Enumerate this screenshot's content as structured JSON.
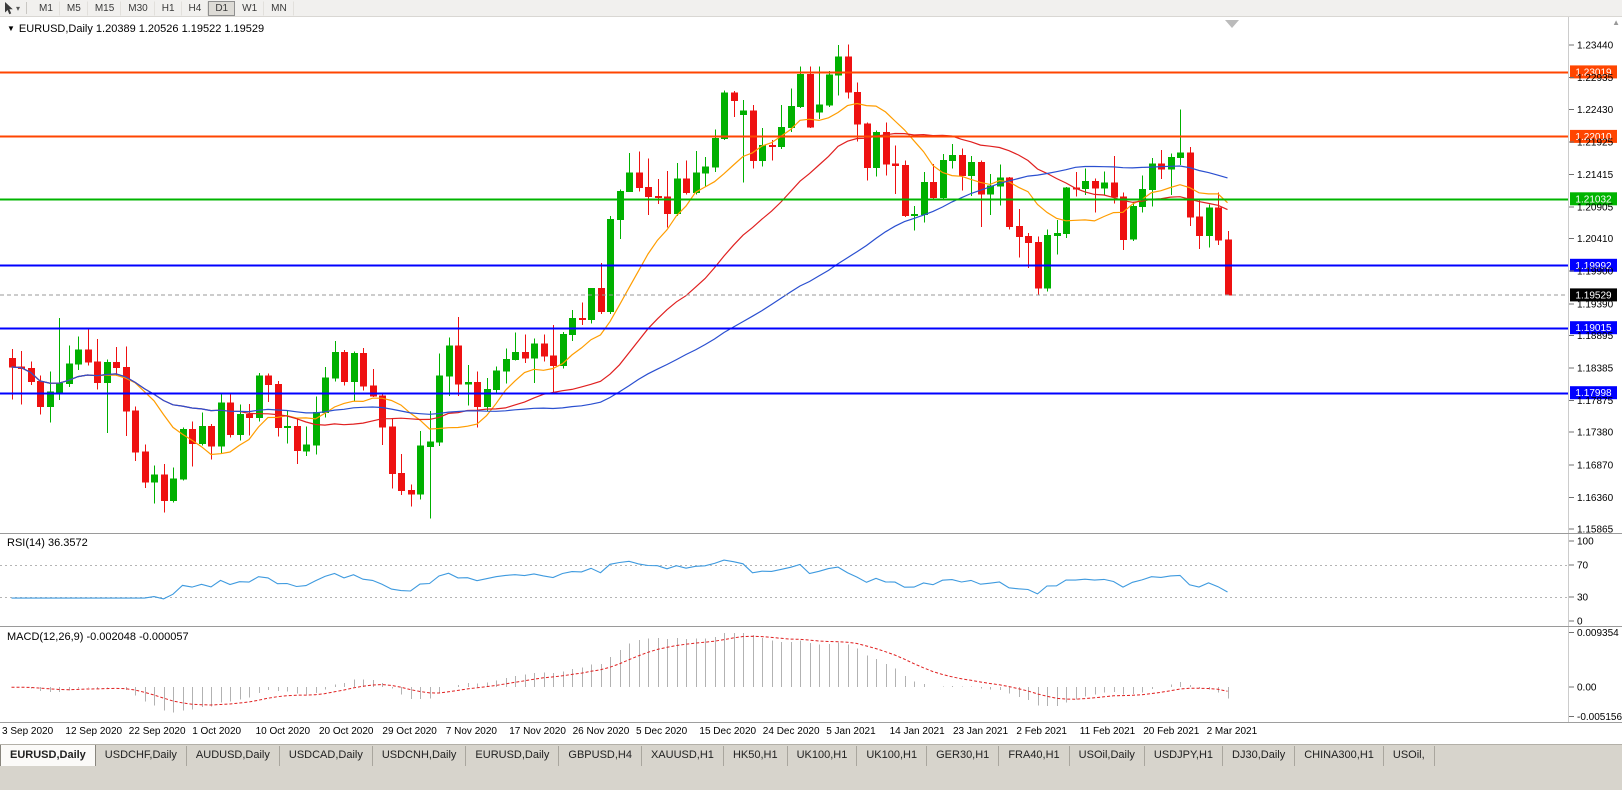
{
  "toolbar": {
    "timeframes": [
      "M1",
      "M5",
      "M15",
      "M30",
      "H1",
      "H4",
      "D1",
      "W1",
      "MN"
    ],
    "active_timeframe": "D1"
  },
  "chart_data": {
    "type": "candlestick",
    "symbol": "EURUSD",
    "period": "Daily",
    "title": "EURUSD,Daily 1.20389 1.20526 1.19522 1.19529",
    "ohlc_current": {
      "open": 1.20389,
      "high": 1.20526,
      "low": 1.19522,
      "close": 1.19529
    },
    "up_color": "#00b000",
    "down_color": "#ee1111",
    "price_axis": {
      "labels": [
        "1.23440",
        "1.22935",
        "1.22430",
        "1.21925",
        "1.21415",
        "1.20905",
        "1.20410",
        "1.19900",
        "1.19390",
        "1.18895",
        "1.18385",
        "1.17875",
        "1.17380",
        "1.16870",
        "1.16360",
        "1.15865"
      ],
      "range_max": 1.23878,
      "range_min": 1.15802
    },
    "x_labels": [
      "3 Sep 2020",
      "12 Sep 2020",
      "22 Sep 2020",
      "1 Oct 2020",
      "10 Oct 2020",
      "20 Oct 2020",
      "29 Oct 2020",
      "7 Nov 2020",
      "17 Nov 2020",
      "26 Nov 2020",
      "5 Dec 2020",
      "15 Dec 2020",
      "24 Dec 2020",
      "5 Jan 2021",
      "14 Jan 2021",
      "23 Jan 2021",
      "2 Feb 2021",
      "11 Feb 2021",
      "20 Feb 2021",
      "2 Mar 2021"
    ],
    "h_lines": [
      {
        "price": 1.23019,
        "label": "1.23019",
        "color": "#ff4500"
      },
      {
        "price": 1.2201,
        "label": "1.22010",
        "color": "#ff4500"
      },
      {
        "price": 1.21032,
        "label": "1.21032",
        "color": "#00b400"
      },
      {
        "price": 1.19992,
        "label": "1.19992",
        "color": "#0000ff"
      },
      {
        "price": 1.19015,
        "label": "1.19015",
        "color": "#0000ff"
      },
      {
        "price": 1.17998,
        "label": "1.17998",
        "color": "#0000ff"
      }
    ],
    "current_price": {
      "value": 1.19529,
      "label": "1.19529",
      "color": "#000000"
    },
    "moving_averages": [
      {
        "period": 10,
        "color": "#ff9d00"
      },
      {
        "period": 25,
        "color": "#e02020"
      },
      {
        "period": 50,
        "color": "#2a4fd0"
      }
    ],
    "rsi": {
      "label": "RSI(14) 36.3572",
      "period": 14,
      "value": 36.3572,
      "levels": [
        100,
        70,
        30,
        0
      ],
      "line_levels": [
        70,
        30
      ],
      "color": "#3e9adf"
    },
    "macd": {
      "label": "MACD(12,26,9) -0.002048 -0.000057",
      "fast": 12,
      "slow": 26,
      "signal_period": 9,
      "current_values": [
        -0.002048,
        -5.7e-05
      ],
      "axis_labels": [
        "0.009354",
        "0.00",
        "-0.005156"
      ],
      "axis_max": 0.009354,
      "axis_min": -0.005156,
      "hist_color": "#b2b2b2",
      "signal_color": "#e02020"
    },
    "candles": [
      [
        1.1853,
        1.1868,
        1.1789,
        1.184
      ],
      [
        1.184,
        1.1865,
        1.1781,
        1.1838
      ],
      [
        1.1838,
        1.1849,
        1.1812,
        1.1817
      ],
      [
        1.1817,
        1.1827,
        1.1766,
        1.1778
      ],
      [
        1.1778,
        1.1833,
        1.1753,
        1.1801
      ],
      [
        1.1801,
        1.1917,
        1.1788,
        1.1814
      ],
      [
        1.1814,
        1.1874,
        1.1809,
        1.1845
      ],
      [
        1.1845,
        1.1888,
        1.1835,
        1.1867
      ],
      [
        1.1867,
        1.19,
        1.1842,
        1.1848
      ],
      [
        1.1848,
        1.1884,
        1.1805,
        1.1816
      ],
      [
        1.1816,
        1.1852,
        1.1737,
        1.1847
      ],
      [
        1.1847,
        1.1871,
        1.1826,
        1.1839
      ],
      [
        1.1839,
        1.1872,
        1.1732,
        1.1771
      ],
      [
        1.1771,
        1.1778,
        1.1693,
        1.1707
      ],
      [
        1.1707,
        1.1719,
        1.1651,
        1.166
      ],
      [
        1.166,
        1.1686,
        1.1626,
        1.1671
      ],
      [
        1.1671,
        1.1688,
        1.1612,
        1.1631
      ],
      [
        1.1631,
        1.1683,
        1.1628,
        1.1665
      ],
      [
        1.1665,
        1.1745,
        1.1662,
        1.1742
      ],
      [
        1.1742,
        1.1755,
        1.1684,
        1.172
      ],
      [
        1.172,
        1.1769,
        1.1717,
        1.1747
      ],
      [
        1.1747,
        1.1751,
        1.1695,
        1.1716
      ],
      [
        1.1716,
        1.1797,
        1.1705,
        1.1784
      ],
      [
        1.1784,
        1.1798,
        1.173,
        1.1734
      ],
      [
        1.1734,
        1.1781,
        1.1725,
        1.1766
      ],
      [
        1.1766,
        1.1782,
        1.1733,
        1.1761
      ],
      [
        1.1761,
        1.1831,
        1.1755,
        1.1826
      ],
      [
        1.1826,
        1.183,
        1.1785,
        1.1813
      ],
      [
        1.1813,
        1.1818,
        1.1731,
        1.1745
      ],
      [
        1.1745,
        1.1772,
        1.172,
        1.1747
      ],
      [
        1.1747,
        1.1758,
        1.1688,
        1.1709
      ],
      [
        1.1709,
        1.1747,
        1.1701,
        1.1718
      ],
      [
        1.1718,
        1.1794,
        1.1703,
        1.1769
      ],
      [
        1.1769,
        1.184,
        1.1761,
        1.1823
      ],
      [
        1.1823,
        1.1881,
        1.1817,
        1.1863
      ],
      [
        1.1863,
        1.1867,
        1.1811,
        1.1817
      ],
      [
        1.1817,
        1.1864,
        1.1786,
        1.1861
      ],
      [
        1.1861,
        1.187,
        1.1803,
        1.181
      ],
      [
        1.181,
        1.1837,
        1.1793,
        1.1795
      ],
      [
        1.1795,
        1.18,
        1.1718,
        1.1746
      ],
      [
        1.1746,
        1.1759,
        1.165,
        1.1673
      ],
      [
        1.1673,
        1.1704,
        1.164,
        1.1647
      ],
      [
        1.1647,
        1.1656,
        1.1622,
        1.1641
      ],
      [
        1.1641,
        1.174,
        1.1633,
        1.1716
      ],
      [
        1.1716,
        1.1771,
        1.1603,
        1.1723
      ],
      [
        1.1723,
        1.1861,
        1.1716,
        1.1826
      ],
      [
        1.1826,
        1.1886,
        1.1795,
        1.1873
      ],
      [
        1.1873,
        1.1918,
        1.1795,
        1.1813
      ],
      [
        1.1813,
        1.1843,
        1.178,
        1.1816
      ],
      [
        1.1816,
        1.1833,
        1.1745,
        1.1778
      ],
      [
        1.1778,
        1.1823,
        1.1771,
        1.1805
      ],
      [
        1.1805,
        1.1841,
        1.1799,
        1.1834
      ],
      [
        1.1834,
        1.1869,
        1.1814,
        1.1852
      ],
      [
        1.1852,
        1.1894,
        1.185,
        1.1863
      ],
      [
        1.1863,
        1.1891,
        1.1846,
        1.1854
      ],
      [
        1.1854,
        1.1885,
        1.1815,
        1.1876
      ],
      [
        1.1876,
        1.1891,
        1.1849,
        1.1857
      ],
      [
        1.1857,
        1.1906,
        1.18,
        1.1842
      ],
      [
        1.1842,
        1.1895,
        1.1838,
        1.1891
      ],
      [
        1.1891,
        1.1929,
        1.1881,
        1.1916
      ],
      [
        1.1916,
        1.1941,
        1.1906,
        1.1914
      ],
      [
        1.1914,
        1.1964,
        1.1908,
        1.1963
      ],
      [
        1.1963,
        1.2003,
        1.1923,
        1.1927
      ],
      [
        1.1927,
        1.2076,
        1.1923,
        1.2071
      ],
      [
        1.2071,
        1.2118,
        1.204,
        1.2115
      ],
      [
        1.2115,
        1.2175,
        1.2114,
        1.2144
      ],
      [
        1.2144,
        1.2177,
        1.2115,
        1.2121
      ],
      [
        1.2121,
        1.2166,
        1.2078,
        1.2107
      ],
      [
        1.2107,
        1.2134,
        1.2095,
        1.2106
      ],
      [
        1.2106,
        1.2147,
        1.2058,
        1.208
      ],
      [
        1.208,
        1.2159,
        1.2076,
        1.2134
      ],
      [
        1.2134,
        1.2163,
        1.211,
        1.2113
      ],
      [
        1.2113,
        1.2178,
        1.211,
        1.2144
      ],
      [
        1.2144,
        1.2169,
        1.2122,
        1.2153
      ],
      [
        1.2153,
        1.2212,
        1.2145,
        1.2198
      ],
      [
        1.2198,
        1.2273,
        1.2195,
        1.2269
      ],
      [
        1.2269,
        1.2272,
        1.2231,
        1.2257
      ],
      [
        1.2235,
        1.2258,
        1.2129,
        1.2241
      ],
      [
        1.2241,
        1.225,
        1.2151,
        1.2163
      ],
      [
        1.2163,
        1.2214,
        1.2154,
        1.2187
      ],
      [
        1.2187,
        1.2195,
        1.2163,
        1.2185
      ],
      [
        1.2185,
        1.225,
        1.2181,
        1.2215
      ],
      [
        1.2215,
        1.2276,
        1.2208,
        1.2248
      ],
      [
        1.2248,
        1.231,
        1.2245,
        1.2298
      ],
      [
        1.2298,
        1.231,
        1.2214,
        1.2216
      ],
      [
        1.2239,
        1.231,
        1.2228,
        1.225
      ],
      [
        1.225,
        1.2303,
        1.2247,
        1.2297
      ],
      [
        1.2297,
        1.2344,
        1.2265,
        1.2325
      ],
      [
        1.2325,
        1.2345,
        1.226,
        1.227
      ],
      [
        1.227,
        1.2285,
        1.2193,
        1.222
      ],
      [
        1.222,
        1.2223,
        1.2132,
        1.2152
      ],
      [
        1.2152,
        1.221,
        1.2138,
        1.2207
      ],
      [
        1.2207,
        1.2223,
        1.214,
        1.2158
      ],
      [
        1.2158,
        1.2187,
        1.2111,
        1.2155
      ],
      [
        1.2155,
        1.2163,
        1.2075,
        1.2077
      ],
      [
        1.2077,
        1.2092,
        1.2054,
        1.2079
      ],
      [
        1.2079,
        1.2145,
        1.2066,
        1.2129
      ],
      [
        1.2129,
        1.2158,
        1.2101,
        1.2105
      ],
      [
        1.2105,
        1.2173,
        1.2103,
        1.2163
      ],
      [
        1.2163,
        1.2189,
        1.2151,
        1.2171
      ],
      [
        1.2171,
        1.2182,
        1.2116,
        1.214
      ],
      [
        1.214,
        1.217,
        1.2108,
        1.216
      ],
      [
        1.216,
        1.2163,
        1.2059,
        1.2111
      ],
      [
        1.2111,
        1.2142,
        1.2078,
        1.2123
      ],
      [
        1.2123,
        1.2157,
        1.2093,
        1.2136
      ],
      [
        1.2136,
        1.2137,
        1.2055,
        1.206
      ],
      [
        1.206,
        1.2087,
        1.2011,
        1.2044
      ],
      [
        1.2044,
        1.205,
        1.1995,
        1.2035
      ],
      [
        1.2035,
        1.2044,
        1.1952,
        1.1964
      ],
      [
        1.1964,
        1.2055,
        1.1958,
        1.2046
      ],
      [
        1.2046,
        1.207,
        1.2016,
        1.2049
      ],
      [
        1.2049,
        1.2122,
        1.2042,
        1.212
      ],
      [
        1.212,
        1.2145,
        1.2107,
        1.2119
      ],
      [
        1.2119,
        1.2151,
        1.2109,
        1.213
      ],
      [
        1.213,
        1.2135,
        1.2082,
        1.212
      ],
      [
        1.212,
        1.2146,
        1.2109,
        1.2128
      ],
      [
        1.2128,
        1.217,
        1.2096,
        1.2106
      ],
      [
        1.2106,
        1.2113,
        1.2023,
        1.204
      ],
      [
        1.204,
        1.2098,
        1.2037,
        1.2091
      ],
      [
        1.2091,
        1.214,
        1.2082,
        1.2118
      ],
      [
        1.2118,
        1.2167,
        1.2091,
        1.2158
      ],
      [
        1.2158,
        1.218,
        1.2134,
        1.215
      ],
      [
        1.215,
        1.2174,
        1.2109,
        1.2168
      ],
      [
        1.2168,
        1.2243,
        1.2156,
        1.2175
      ],
      [
        1.2175,
        1.2184,
        1.2061,
        1.2075
      ],
      [
        1.2075,
        1.2101,
        1.2025,
        1.2046
      ],
      [
        1.2046,
        1.2094,
        1.2027,
        1.2089
      ],
      [
        1.2089,
        1.2113,
        1.2031,
        1.2039
      ],
      [
        1.20389,
        1.20526,
        1.19522,
        1.19529
      ]
    ]
  },
  "tabs": [
    {
      "label": "EURUSD,Daily",
      "active": true
    },
    {
      "label": "USDCHF,Daily",
      "active": false
    },
    {
      "label": "AUDUSD,Daily",
      "active": false
    },
    {
      "label": "USDCAD,Daily",
      "active": false
    },
    {
      "label": "USDCNH,Daily",
      "active": false
    },
    {
      "label": "EURUSD,Daily",
      "active": false
    },
    {
      "label": "GBPUSD,H4",
      "active": false
    },
    {
      "label": "XAUUSD,H1",
      "active": false
    },
    {
      "label": "HK50,H1",
      "active": false
    },
    {
      "label": "UK100,H1",
      "active": false
    },
    {
      "label": "UK100,H1",
      "active": false
    },
    {
      "label": "GER30,H1",
      "active": false
    },
    {
      "label": "FRA40,H1",
      "active": false
    },
    {
      "label": "USOil,Daily",
      "active": false
    },
    {
      "label": "USDJPY,H1",
      "active": false
    },
    {
      "label": "DJ30,Daily",
      "active": false
    },
    {
      "label": "CHINA300,H1",
      "active": false
    },
    {
      "label": "USOil,",
      "active": false
    }
  ]
}
